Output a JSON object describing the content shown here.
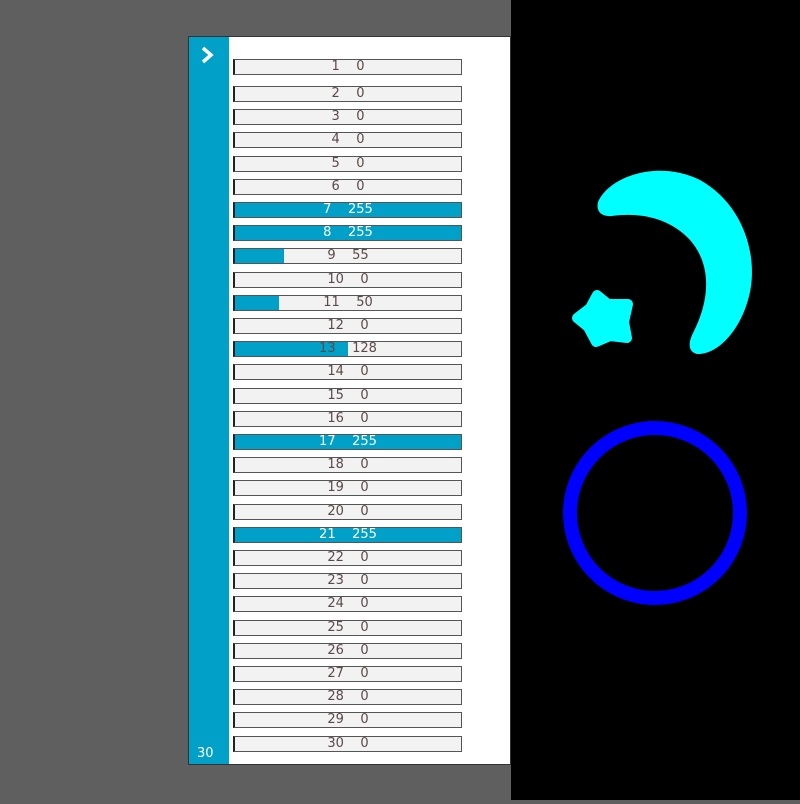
{
  "panel": {
    "count_label": "30",
    "toggle_icon": "chevron-right-icon",
    "max_value": 255,
    "accent_color": "#00a0c8",
    "rows": [
      {
        "index": "1",
        "value": 0
      },
      {
        "index": "2",
        "value": 0
      },
      {
        "index": "3",
        "value": 0
      },
      {
        "index": "4",
        "value": 0
      },
      {
        "index": "5",
        "value": 0
      },
      {
        "index": "6",
        "value": 0
      },
      {
        "index": "7",
        "value": 255
      },
      {
        "index": "8",
        "value": 255
      },
      {
        "index": "9",
        "value": 55
      },
      {
        "index": "10",
        "value": 0
      },
      {
        "index": "11",
        "value": 50
      },
      {
        "index": "12",
        "value": 0
      },
      {
        "index": "13",
        "value": 128
      },
      {
        "index": "14",
        "value": 0
      },
      {
        "index": "15",
        "value": 0
      },
      {
        "index": "16",
        "value": 0
      },
      {
        "index": "17",
        "value": 255
      },
      {
        "index": "18",
        "value": 0
      },
      {
        "index": "19",
        "value": 0
      },
      {
        "index": "20",
        "value": 0
      },
      {
        "index": "21",
        "value": 255
      },
      {
        "index": "22",
        "value": 0
      },
      {
        "index": "23",
        "value": 0
      },
      {
        "index": "24",
        "value": 0
      },
      {
        "index": "25",
        "value": 0
      },
      {
        "index": "26",
        "value": 0
      },
      {
        "index": "27",
        "value": 0
      },
      {
        "index": "28",
        "value": 0
      },
      {
        "index": "29",
        "value": 0
      },
      {
        "index": "30",
        "value": 0
      }
    ]
  },
  "canvas": {
    "background": "#000000",
    "shapes": [
      {
        "type": "crescent",
        "color": "#00ffff"
      },
      {
        "type": "star",
        "color": "#00ffff"
      },
      {
        "type": "ring",
        "color": "#0000ff"
      }
    ]
  }
}
